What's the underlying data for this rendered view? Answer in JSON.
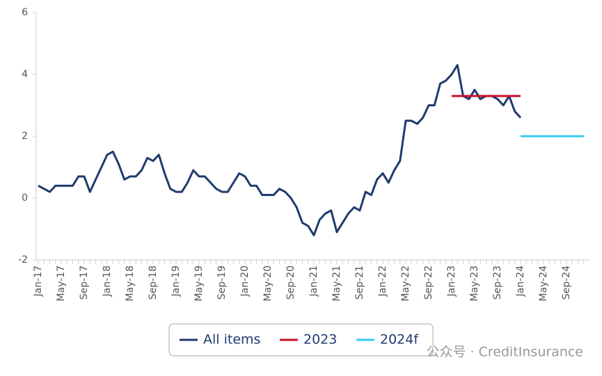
{
  "chart_data": {
    "type": "line",
    "categories": [
      "Jan-17",
      null,
      null,
      null,
      "May-17",
      null,
      null,
      null,
      "Sep-17",
      null,
      null,
      null,
      "Jan-18",
      null,
      null,
      null,
      "May-18",
      null,
      null,
      null,
      "Sep-18",
      null,
      null,
      null,
      "Jan-19",
      null,
      null,
      null,
      "May-19",
      null,
      null,
      null,
      "Sep-19",
      null,
      null,
      null,
      "Jan-20",
      null,
      null,
      null,
      "May-20",
      null,
      null,
      null,
      "Sep-20",
      null,
      null,
      null,
      "Jan-21",
      null,
      null,
      null,
      "May-21",
      null,
      null,
      null,
      "Sep-21",
      null,
      null,
      null,
      "Jan-22",
      null,
      null,
      null,
      "May-22",
      null,
      null,
      null,
      "Sep-22",
      null,
      null,
      null,
      "Jan-23",
      null,
      null,
      null,
      "May-23",
      null,
      null,
      null,
      "Sep-23",
      null,
      null,
      null,
      "Jan-24",
      null,
      null,
      null,
      "May-24",
      null,
      null,
      null,
      "Sep-24",
      null,
      null,
      null
    ],
    "series": [
      {
        "name": "All items",
        "color": "#1f3a6e",
        "values": [
          0.4,
          0.3,
          0.2,
          0.4,
          0.4,
          0.4,
          0.4,
          0.7,
          0.7,
          0.2,
          0.6,
          1.0,
          1.4,
          1.5,
          1.1,
          0.6,
          0.7,
          0.7,
          0.9,
          1.3,
          1.2,
          1.4,
          0.8,
          0.3,
          0.2,
          0.2,
          0.5,
          0.9,
          0.7,
          0.7,
          0.5,
          0.3,
          0.2,
          0.2,
          0.5,
          0.8,
          0.7,
          0.4,
          0.4,
          0.1,
          0.1,
          0.1,
          0.3,
          0.2,
          0.0,
          -0.3,
          -0.8,
          -0.9,
          -1.2,
          -0.7,
          -0.5,
          -0.4,
          -1.1,
          -0.8,
          -0.5,
          -0.3,
          -0.4,
          0.2,
          0.1,
          0.6,
          0.8,
          0.5,
          0.9,
          1.2,
          2.5,
          2.5,
          2.4,
          2.6,
          3.0,
          3.0,
          3.7,
          3.8,
          4.0,
          4.3,
          3.3,
          3.2,
          3.5,
          3.2,
          3.3,
          3.3,
          3.2,
          3.0,
          3.3,
          2.8,
          2.6,
          null,
          null,
          null,
          null,
          null,
          null,
          null,
          null,
          null,
          null,
          null
        ]
      },
      {
        "name": "2023",
        "color": "#c8102e",
        "values": [
          null,
          null,
          null,
          null,
          null,
          null,
          null,
          null,
          null,
          null,
          null,
          null,
          null,
          null,
          null,
          null,
          null,
          null,
          null,
          null,
          null,
          null,
          null,
          null,
          null,
          null,
          null,
          null,
          null,
          null,
          null,
          null,
          null,
          null,
          null,
          null,
          null,
          null,
          null,
          null,
          null,
          null,
          null,
          null,
          null,
          null,
          null,
          null,
          null,
          null,
          null,
          null,
          null,
          null,
          null,
          null,
          null,
          null,
          null,
          null,
          null,
          null,
          null,
          null,
          null,
          null,
          null,
          null,
          null,
          null,
          null,
          null,
          3.3,
          3.3,
          3.3,
          3.3,
          3.3,
          3.3,
          3.3,
          3.3,
          3.3,
          3.3,
          3.3,
          3.3,
          3.3,
          null,
          null,
          null,
          null,
          null,
          null,
          null,
          null,
          null,
          null,
          null
        ]
      },
      {
        "name": "2024f",
        "color": "#33ccf5",
        "values": [
          null,
          null,
          null,
          null,
          null,
          null,
          null,
          null,
          null,
          null,
          null,
          null,
          null,
          null,
          null,
          null,
          null,
          null,
          null,
          null,
          null,
          null,
          null,
          null,
          null,
          null,
          null,
          null,
          null,
          null,
          null,
          null,
          null,
          null,
          null,
          null,
          null,
          null,
          null,
          null,
          null,
          null,
          null,
          null,
          null,
          null,
          null,
          null,
          null,
          null,
          null,
          null,
          null,
          null,
          null,
          null,
          null,
          null,
          null,
          null,
          null,
          null,
          null,
          null,
          null,
          null,
          null,
          null,
          null,
          null,
          null,
          null,
          null,
          null,
          null,
          null,
          null,
          null,
          null,
          null,
          null,
          null,
          null,
          null,
          2.0,
          2.0,
          2.0,
          2.0,
          2.0,
          2.0,
          2.0,
          2.0,
          2.0,
          2.0,
          2.0,
          2.0
        ]
      }
    ],
    "ylim": [
      -2,
      6
    ],
    "yticks": [
      -2,
      0,
      2,
      4,
      6
    ],
    "legend": "bottom",
    "watermark": "公众号 · CreditInsurance"
  }
}
